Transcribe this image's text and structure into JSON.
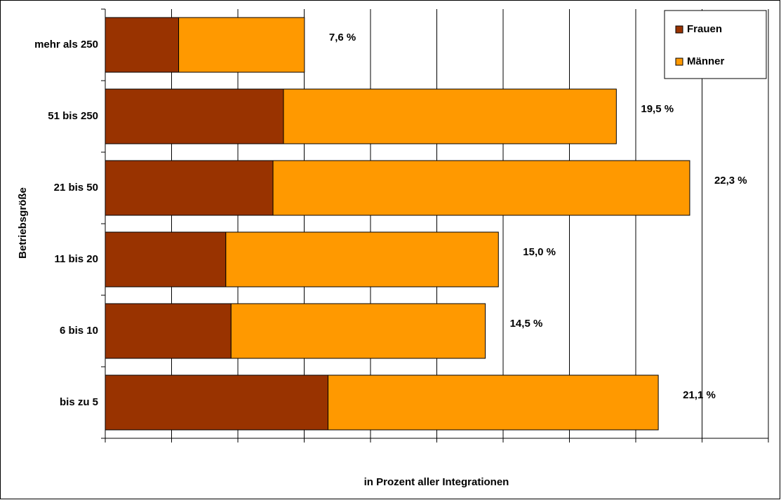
{
  "chart_data": {
    "type": "stacked-bar-horizontal",
    "y_label": "Betriebsgröße",
    "x_label": "in Prozent aller Integrationen",
    "categories": [
      "mehr als 250",
      "51 bis 250",
      "21 bis 50",
      "11 bis 20",
      "6 bis 10",
      "bis zu 5"
    ],
    "series": [
      {
        "name": "Frauen",
        "color": "#993300",
        "values": [
          2.8,
          6.8,
          6.4,
          4.6,
          4.8,
          8.5
        ]
      },
      {
        "name": "Männer",
        "color": "#FF9900",
        "values": [
          4.8,
          12.7,
          15.9,
          10.4,
          9.7,
          12.6
        ]
      }
    ],
    "totals": [
      7.6,
      19.5,
      22.3,
      15.0,
      14.5,
      21.1
    ],
    "value_labels": [
      "7,6 %",
      "19,5 %",
      "22,3 %",
      "15,0 %",
      "14,5 %",
      "21,1 %"
    ],
    "xlim": [
      0,
      25.3
    ],
    "xticks": [
      0,
      2.53,
      5.06,
      7.59,
      10.12,
      12.65,
      15.18,
      17.71,
      20.24,
      22.77,
      25.3
    ],
    "grid": true,
    "legend": "top-right"
  }
}
